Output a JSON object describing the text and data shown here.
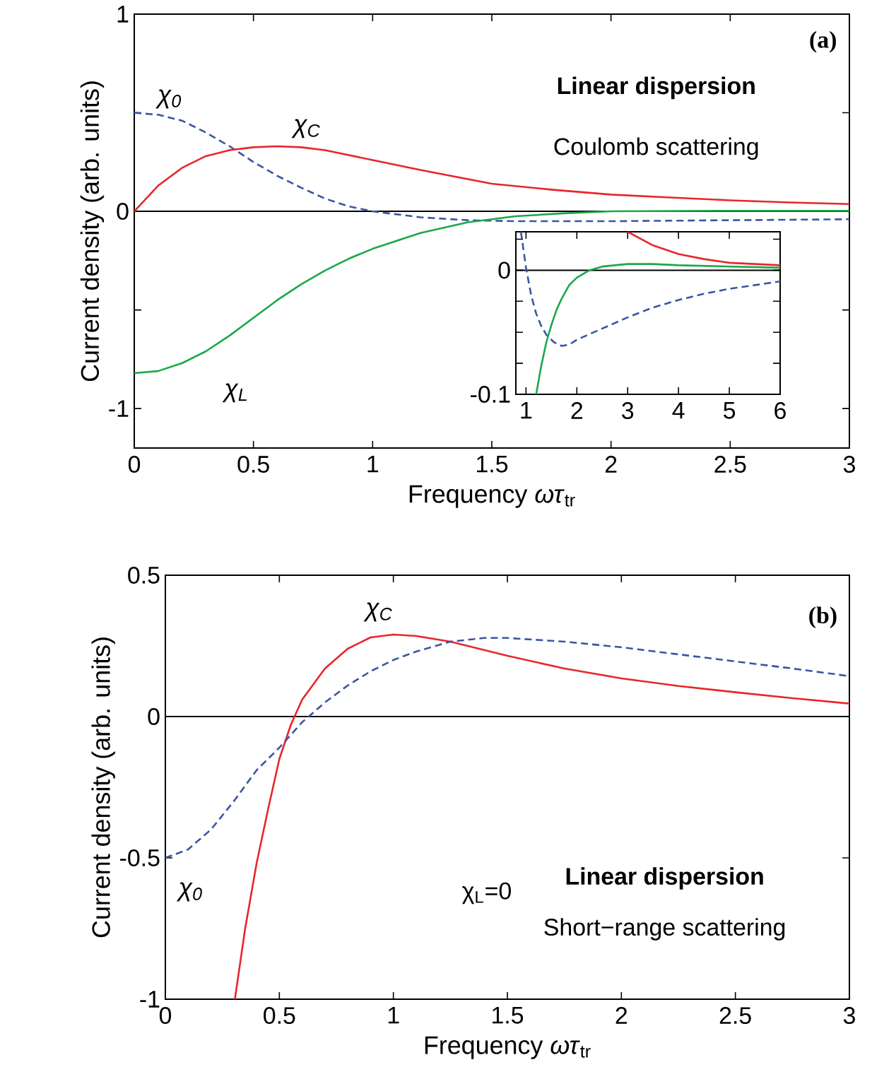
{
  "chart_data": [
    {
      "type": "line",
      "xlabel": "Frequency *ωτ*$_{tr}$",
      "ylabel": "Current density (arb. units)",
      "xlim": [
        0,
        3
      ],
      "xticks": [
        0,
        0.5,
        1,
        1.5,
        2,
        2.5,
        3
      ],
      "ylim": [
        -1.2,
        1
      ],
      "yticks": [
        1,
        {
          "value": 0.5,
          "label": null
        },
        0,
        {
          "value": -0.5,
          "label": null
        },
        -1
      ],
      "annotations": [
        "(a)",
        "Linear dispersion",
        "Coulomb scattering"
      ],
      "ref_lines": [
        {
          "axis": "y",
          "value": 0,
          "color": "#000000"
        }
      ],
      "series": [
        {
          "name": "χ$_{0}$",
          "color": "#3a55a4",
          "line_style": "dashed",
          "x": [
            0,
            0.1,
            0.2,
            0.3,
            0.4,
            0.5,
            0.6,
            0.7,
            0.8,
            0.9,
            1.0,
            1.2,
            1.4,
            1.6,
            2.0,
            2.5,
            3.0
          ],
          "values": [
            0.5,
            0.49,
            0.46,
            0.4,
            0.33,
            0.25,
            0.18,
            0.12,
            0.065,
            0.025,
            0,
            -0.03,
            -0.045,
            -0.05,
            -0.05,
            -0.045,
            -0.04
          ]
        },
        {
          "name": "χ$_{C}$",
          "color": "#e8262a",
          "line_style": "solid",
          "x": [
            0,
            0.1,
            0.2,
            0.3,
            0.4,
            0.5,
            0.6,
            0.7,
            0.8,
            1.0,
            1.2,
            1.5,
            1.75,
            2.0,
            2.25,
            2.5,
            2.75,
            3.0
          ],
          "values": [
            0,
            0.13,
            0.22,
            0.28,
            0.31,
            0.325,
            0.33,
            0.325,
            0.31,
            0.26,
            0.21,
            0.14,
            0.11,
            0.085,
            0.07,
            0.056,
            0.045,
            0.037
          ]
        },
        {
          "name": "χ$_{L}$",
          "color": "#1aa84a",
          "line_style": "solid",
          "x": [
            0,
            0.1,
            0.2,
            0.3,
            0.4,
            0.5,
            0.6,
            0.7,
            0.8,
            0.9,
            1.0,
            1.2,
            1.4,
            1.6,
            1.8,
            2.0,
            2.5,
            3.0
          ],
          "values": [
            -0.82,
            -0.81,
            -0.77,
            -0.71,
            -0.63,
            -0.54,
            -0.45,
            -0.37,
            -0.3,
            -0.24,
            -0.19,
            -0.11,
            -0.055,
            -0.025,
            -0.01,
            0,
            0.003,
            0.003
          ]
        }
      ]
    },
    {
      "type": "line",
      "xlim": [
        0.8,
        6
      ],
      "xticks": [
        1,
        2,
        3,
        4,
        5,
        6
      ],
      "ylim": [
        -0.1,
        0.031
      ],
      "yticks": [
        {
          "value": 0.025,
          "label": null
        },
        0,
        {
          "value": -0.025,
          "label": null
        },
        {
          "value": -0.05,
          "label": null
        },
        {
          "value": -0.075,
          "label": null
        },
        -0.1
      ],
      "ref_lines": [
        {
          "axis": "y",
          "value": 0,
          "color": "#000000"
        }
      ],
      "series": [
        {
          "color": "#3a55a4",
          "line_style": "dashed",
          "x": [
            0.9,
            1.0,
            1.1,
            1.2,
            1.3,
            1.4,
            1.55,
            1.7,
            1.85,
            2.0,
            2.5,
            3.0,
            3.5,
            4.0,
            4.5,
            5.0,
            5.5,
            6.0
          ],
          "values": [
            0.031,
            0.002,
            -0.02,
            -0.035,
            -0.045,
            -0.052,
            -0.058,
            -0.061,
            -0.06,
            -0.056,
            -0.047,
            -0.038,
            -0.03,
            -0.024,
            -0.019,
            -0.015,
            -0.012,
            -0.009
          ]
        },
        {
          "color": "#e8262a",
          "line_style": "solid",
          "x": [
            3.0,
            3.5,
            4.0,
            4.5,
            5.0,
            5.5,
            6.0
          ],
          "values": [
            0.031,
            0.02,
            0.013,
            0.009,
            0.006,
            0.005,
            0.004
          ]
        },
        {
          "color": "#1aa84a",
          "line_style": "solid",
          "x": [
            1.2,
            1.3,
            1.4,
            1.5,
            1.6,
            1.7,
            1.85,
            2.0,
            2.25,
            2.5,
            3.0,
            3.5,
            4.0,
            5.0,
            6.0
          ],
          "values": [
            -0.1,
            -0.077,
            -0.058,
            -0.044,
            -0.032,
            -0.023,
            -0.012,
            -0.006,
            0,
            0.003,
            0.005,
            0.005,
            0.004,
            0.003,
            0.002
          ]
        }
      ]
    },
    {
      "type": "line",
      "xlabel": "Frequency *ωτ*$_{tr}$",
      "ylabel": "Current density (arb. units)",
      "xlim": [
        0,
        3
      ],
      "xticks": [
        0,
        0.5,
        1,
        1.5,
        2,
        2.5,
        3
      ],
      "ylim": [
        -1,
        0.5
      ],
      "yticks": [
        0.5,
        0,
        -0.5,
        -1
      ],
      "annotations": [
        "(b)",
        "χ$_{L}$=0",
        "Linear dispersion",
        "Short−range scattering"
      ],
      "ref_lines": [
        {
          "axis": "y",
          "value": 0,
          "color": "#000000"
        }
      ],
      "series": [
        {
          "name": "χ$_{C}$",
          "color": "#e8262a",
          "line_style": "solid",
          "x": [
            0.305,
            0.35,
            0.4,
            0.45,
            0.5,
            0.55,
            0.6,
            0.7,
            0.8,
            0.9,
            1.0,
            1.1,
            1.25,
            1.5,
            1.75,
            2.0,
            2.25,
            2.5,
            2.75,
            3.0
          ],
          "values": [
            -1,
            -0.75,
            -0.52,
            -0.33,
            -0.15,
            -0.03,
            0.06,
            0.17,
            0.24,
            0.28,
            0.29,
            0.285,
            0.265,
            0.215,
            0.17,
            0.135,
            0.108,
            0.086,
            0.065,
            0.046
          ]
        },
        {
          "name": "χ$_{0}$",
          "color": "#3a55a4",
          "line_style": "dashed",
          "x": [
            0,
            0.1,
            0.2,
            0.3,
            0.4,
            0.5,
            0.6,
            0.7,
            0.8,
            0.9,
            1.0,
            1.1,
            1.25,
            1.4,
            1.5,
            1.75,
            2.0,
            2.25,
            2.5,
            2.75,
            3.0
          ],
          "values": [
            -0.5,
            -0.47,
            -0.4,
            -0.3,
            -0.19,
            -0.11,
            -0.02,
            0.05,
            0.11,
            0.16,
            0.2,
            0.23,
            0.265,
            0.278,
            0.278,
            0.265,
            0.245,
            0.22,
            0.195,
            0.17,
            0.143
          ]
        }
      ]
    }
  ]
}
